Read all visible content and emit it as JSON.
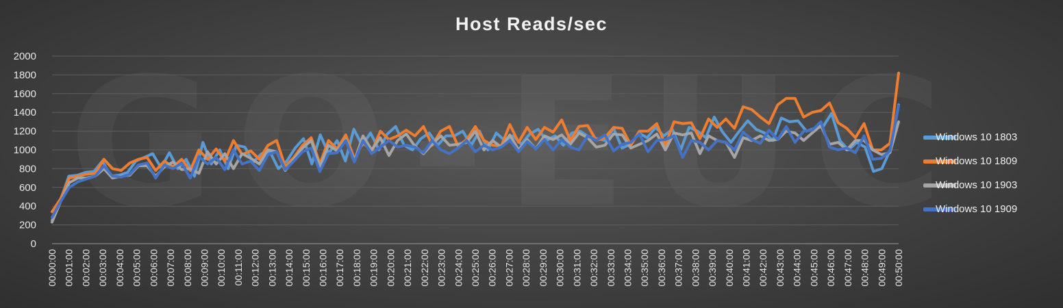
{
  "chart_data": {
    "type": "line",
    "title": "Host Reads/sec",
    "watermark": "GO-EUC",
    "ylim": [
      0,
      2000
    ],
    "yticks": [
      0,
      200,
      400,
      600,
      800,
      1000,
      1200,
      1400,
      1600,
      1800,
      2000
    ],
    "xlabels": [
      "00:00:00",
      "00:01:00",
      "00:02:00",
      "00:03:00",
      "00:04:00",
      "00:05:00",
      "00:06:00",
      "00:07:00",
      "00:08:00",
      "00:09:00",
      "00:10:00",
      "00:11:00",
      "00:12:00",
      "00:13:00",
      "00:14:00",
      "00:15:00",
      "00:16:00",
      "00:17:00",
      "00:18:00",
      "00:19:00",
      "00:20:00",
      "00:21:00",
      "00:22:00",
      "00:23:00",
      "00:24:00",
      "00:25:00",
      "00:26:00",
      "00:27:00",
      "00:28:00",
      "00:29:00",
      "00:30:00",
      "00:31:00",
      "00:32:00",
      "00:33:00",
      "00:34:00",
      "00:35:00",
      "00:36:00",
      "00:37:00",
      "00:38:00",
      "00:39:00",
      "00:40:00",
      "00:41:00",
      "00:42:00",
      "00:43:00",
      "00:44:00",
      "00:45:00",
      "00:46:00",
      "00:47:00",
      "00:48:00",
      "00:49:00",
      "00:50:00"
    ],
    "grid": "horizontal",
    "legend_position": "right",
    "series": [
      {
        "name": "Windows 10 1803",
        "color": "#5b9bd5",
        "values": [
          250,
          460,
          720,
          730,
          760,
          770,
          880,
          720,
          730,
          760,
          880,
          920,
          960,
          810,
          970,
          800,
          900,
          720,
          1080,
          850,
          1000,
          800,
          1050,
          1030,
          870,
          960,
          980,
          800,
          880,
          1020,
          1120,
          850,
          1160,
          960,
          1100,
          880,
          1220,
          1050,
          1180,
          1000,
          1170,
          1250,
          1050,
          1000,
          1120,
          1180,
          1050,
          1150,
          1150,
          1200,
          1050,
          1200,
          1000,
          1180,
          1100,
          1150,
          1060,
          1170,
          1220,
          1100,
          1150,
          1050,
          1180,
          1200,
          1140,
          1120,
          1100,
          1230,
          1020,
          1060,
          1180,
          1130,
          1240,
          1150,
          1220,
          1000,
          1240,
          1200,
          1130,
          1350,
          1190,
          1080,
          1200,
          1310,
          1220,
          1180,
          1100,
          1340,
          1300,
          1310,
          1200,
          1230,
          1250,
          1390,
          1100,
          1000,
          1080,
          1030,
          770,
          800,
          1000,
          1480
        ]
      },
      {
        "name": "Windows 10 1809",
        "color": "#ed7d31",
        "values": [
          340,
          480,
          700,
          720,
          740,
          750,
          900,
          800,
          780,
          860,
          900,
          920,
          780,
          880,
          820,
          900,
          780,
          1000,
          900,
          1010,
          880,
          1100,
          950,
          990,
          900,
          1050,
          1100,
          820,
          920,
          1050,
          1130,
          850,
          1100,
          1010,
          1160,
          900,
          1080,
          980,
          1200,
          1110,
          1150,
          1210,
          1150,
          1250,
          1050,
          1200,
          1250,
          1040,
          1110,
          1250,
          1100,
          1050,
          1040,
          1270,
          1080,
          1240,
          1110,
          1240,
          1190,
          1320,
          1100,
          1250,
          1260,
          1100,
          1130,
          1240,
          1230,
          1050,
          1200,
          1200,
          1280,
          1050,
          1300,
          1280,
          1290,
          1120,
          1330,
          1240,
          1330,
          1230,
          1460,
          1430,
          1350,
          1280,
          1480,
          1550,
          1550,
          1350,
          1400,
          1420,
          1500,
          1290,
          1230,
          1130,
          1280,
          1000,
          1000,
          1070,
          1820
        ]
      },
      {
        "name": "Windows 10 1903",
        "color": "#a5a5a5",
        "values": [
          230,
          450,
          650,
          700,
          700,
          720,
          800,
          700,
          720,
          730,
          830,
          830,
          720,
          820,
          870,
          790,
          800,
          750,
          980,
          850,
          960,
          800,
          960,
          910,
          850,
          1000,
          980,
          780,
          900,
          1020,
          1100,
          820,
          1050,
          990,
          1110,
          880,
          1150,
          1000,
          1130,
          940,
          1100,
          1170,
          1040,
          960,
          1060,
          1150,
          1050,
          1060,
          1080,
          1200,
          1000,
          1100,
          1030,
          1160,
          1000,
          1110,
          1010,
          1150,
          1110,
          1160,
          1060,
          1180,
          1130,
          1030,
          1050,
          1170,
          1160,
          1020,
          1060,
          1100,
          1170,
          1000,
          1180,
          1160,
          1180,
          960,
          1150,
          1100,
          1080,
          920,
          1130,
          1100,
          1150,
          1100,
          1110,
          1200,
          1180,
          1100,
          1180,
          1260,
          1060,
          1080,
          1000,
          1100,
          1100,
          1000,
          950,
          970,
          1300
        ]
      },
      {
        "name": "Windows 10 1909",
        "color": "#4472c4",
        "values": [
          280,
          450,
          600,
          660,
          690,
          720,
          830,
          720,
          710,
          740,
          840,
          860,
          700,
          840,
          800,
          860,
          700,
          930,
          850,
          920,
          790,
          1000,
          850,
          880,
          780,
          950,
          980,
          790,
          880,
          980,
          1020,
          770,
          960,
          970,
          1100,
          870,
          1100,
          960,
          1030,
          1100,
          1030,
          1050,
          1030,
          970,
          1100,
          1000,
          960,
          1020,
          1100,
          980,
          1050,
          1000,
          1030,
          1100,
          980,
          1090,
          1010,
          1110,
          1000,
          1110,
          1030,
          1000,
          1150,
          1100,
          1160,
          990,
          1060,
          1080,
          1170,
          980,
          1100,
          1110,
          1150,
          920,
          1100,
          1080,
          1000,
          1100,
          1080,
          1000,
          1190,
          1110,
          1070,
          1210,
          1110,
          1250,
          1080,
          1200,
          1210,
          1300,
          1030,
          1000,
          1020,
          970,
          1150,
          900,
          910,
          990,
          1470
        ]
      }
    ]
  }
}
